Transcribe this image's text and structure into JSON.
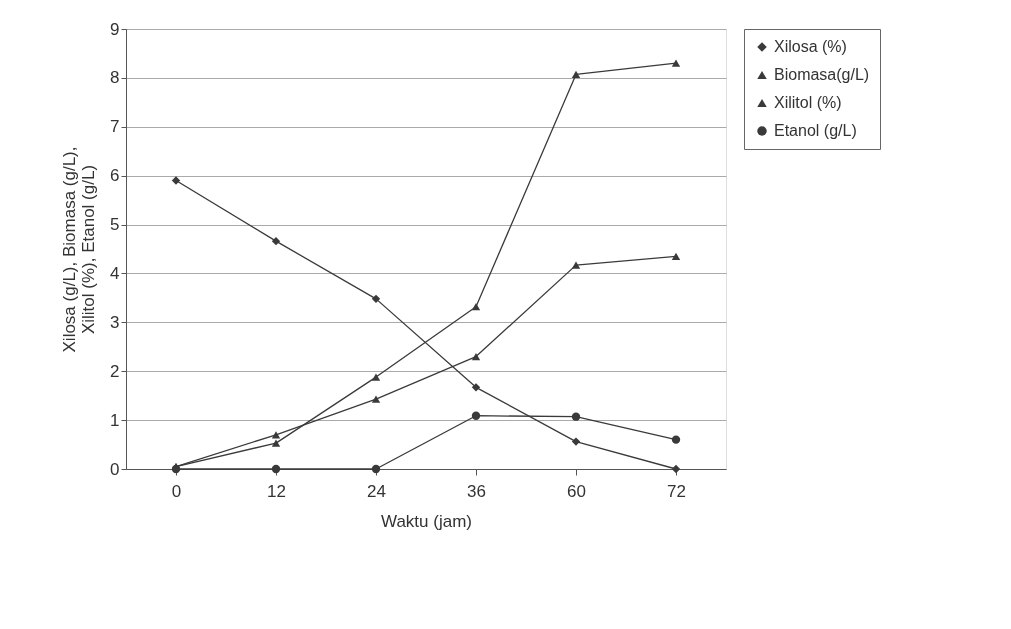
{
  "chart_data": {
    "type": "line",
    "xlabel": "Waktu (jam)",
    "ylabel": "Xilosa (g/L), Biomasa (g/L), Xilitol (%), Etanol (g/L)",
    "categories": [
      "0",
      "12",
      "24",
      "36",
      "60",
      "72"
    ],
    "series": [
      {
        "name": "Xilosa (%)",
        "color": "#3a3a3a",
        "marker": "diamond",
        "values": [
          5.9,
          4.66,
          3.48,
          1.67,
          0.56,
          0
        ]
      },
      {
        "name": "Biomasa(g/L)",
        "color": "#3a3a3a",
        "marker": "triangle",
        "values": [
          0.05,
          0.53,
          1.88,
          3.32,
          8.07,
          8.3
        ]
      },
      {
        "name": "Xilitol (%)",
        "color": "#3a3a3a",
        "marker": "triangle",
        "values": [
          0.05,
          0.7,
          1.43,
          2.3,
          4.17,
          4.35
        ]
      },
      {
        "name": "Etanol (g/L)",
        "color": "#3a3a3a",
        "marker": "circle",
        "values": [
          0,
          0,
          0,
          1.09,
          1.07,
          0.6
        ]
      }
    ],
    "ylim": [
      0,
      9
    ],
    "yticks": [
      0,
      1,
      2,
      3,
      4,
      5,
      6,
      7,
      8,
      9
    ],
    "grid": "y",
    "legend": "right",
    "line_style": "solid"
  }
}
